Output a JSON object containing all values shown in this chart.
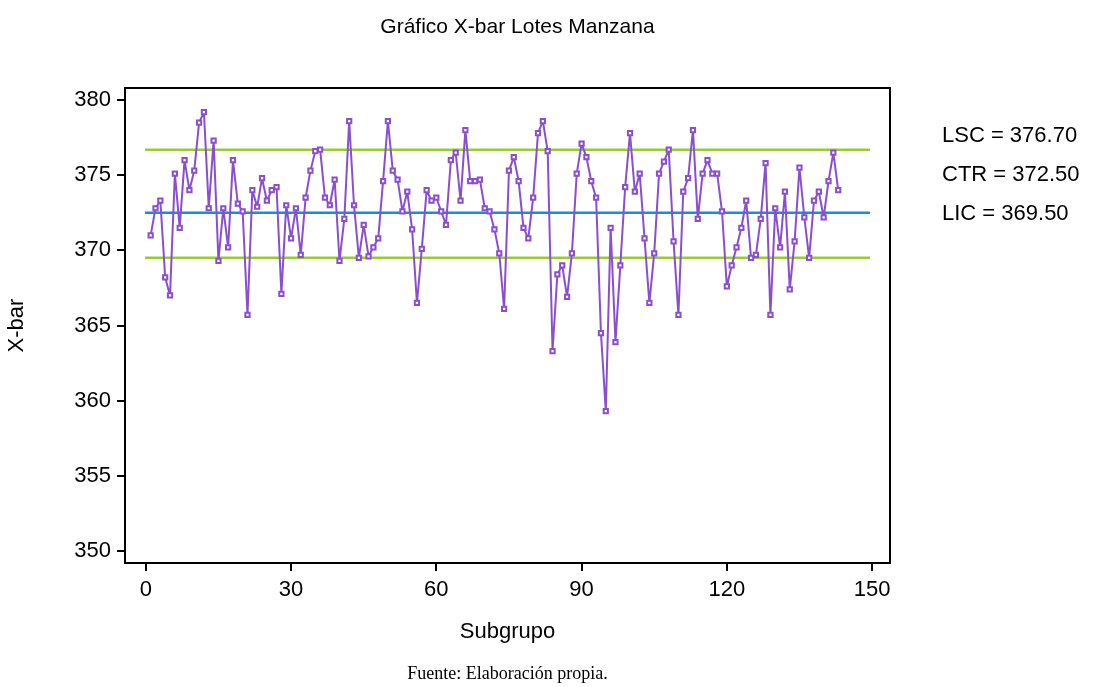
{
  "chart_data": {
    "type": "line",
    "title": "Gráfico X-bar Lotes Manzana",
    "xlabel": "Subgrupo",
    "ylabel": "X-bar",
    "annotations": [
      "LSC = 376.70",
      "CTR = 372.50",
      "LIC = 369.50",
      "Fuente: Elaboración propia."
    ],
    "x": [
      1,
      2,
      3,
      4,
      5,
      6,
      7,
      8,
      9,
      10,
      11,
      12,
      13,
      14,
      15,
      16,
      17,
      18,
      19,
      20,
      21,
      22,
      23,
      24,
      25,
      26,
      27,
      28,
      29,
      30,
      31,
      32,
      33,
      34,
      35,
      36,
      37,
      38,
      39,
      40,
      41,
      42,
      43,
      44,
      45,
      46,
      47,
      48,
      49,
      50,
      51,
      52,
      53,
      54,
      55,
      56,
      57,
      58,
      59,
      60,
      61,
      62,
      63,
      64,
      65,
      66,
      67,
      68,
      69,
      70,
      71,
      72,
      73,
      74,
      75,
      76,
      77,
      78,
      79,
      80,
      81,
      82,
      83,
      84,
      85,
      86,
      87,
      88,
      89,
      90,
      91,
      92,
      93,
      94,
      95,
      96,
      97,
      98,
      99,
      100,
      101,
      102,
      103,
      104,
      105,
      106,
      107,
      108,
      109,
      110,
      111,
      112,
      113,
      114,
      115,
      116,
      117,
      118,
      119,
      120,
      121,
      122,
      123,
      124,
      125,
      126,
      127,
      128,
      129,
      130,
      131,
      132,
      133,
      134,
      135,
      136,
      137,
      138,
      139,
      140,
      141,
      142,
      143
    ],
    "series": [
      {
        "color": "#8a4fcf",
        "values": [
          371.0,
          372.8,
          373.3,
          368.2,
          367.0,
          375.1,
          371.5,
          376.0,
          374.0,
          375.3,
          378.5,
          379.2,
          372.8,
          377.3,
          369.3,
          372.8,
          370.2,
          376.0,
          373.1,
          372.6,
          365.7,
          374.0,
          372.9,
          374.8,
          373.3,
          374.0,
          374.2,
          367.1,
          373.0,
          370.8,
          372.8,
          369.7,
          373.5,
          375.3,
          376.6,
          376.7,
          373.5,
          373.0,
          374.7,
          369.3,
          372.1,
          378.6,
          373.0,
          369.5,
          371.7,
          369.6,
          370.2,
          370.8,
          374.6,
          378.6,
          375.3,
          374.7,
          372.6,
          373.9,
          371.4,
          366.5,
          370.1,
          374.0,
          373.3,
          373.5,
          372.6,
          371.7,
          376.0,
          376.5,
          373.3,
          378.0,
          374.6,
          374.6,
          374.7,
          372.8,
          372.6,
          371.4,
          369.8,
          366.1,
          375.3,
          376.2,
          374.6,
          371.5,
          370.8,
          373.5,
          377.8,
          378.6,
          376.6,
          363.3,
          368.4,
          369.0,
          366.9,
          369.8,
          375.1,
          377.1,
          376.2,
          374.6,
          373.5,
          364.5,
          359.3,
          371.5,
          363.9,
          369.0,
          374.2,
          377.8,
          373.9,
          375.1,
          370.8,
          366.5,
          369.8,
          375.1,
          375.9,
          376.7,
          370.6,
          365.7,
          373.9,
          374.8,
          378.0,
          372.1,
          375.1,
          376.0,
          375.1,
          375.1,
          372.6,
          367.6,
          369.0,
          370.2,
          371.5,
          373.3,
          369.5,
          369.7,
          372.1,
          375.8,
          365.7,
          372.8,
          370.2,
          373.9,
          367.4,
          370.6,
          375.5,
          372.2,
          369.5,
          373.3,
          373.9,
          372.2,
          374.6,
          376.5,
          374.0
        ]
      }
    ],
    "marker": "square",
    "xlim": [
      -4.3,
      153.7
    ],
    "xticks": [
      0,
      30,
      60,
      90,
      120,
      150
    ],
    "ylim": [
      349.2,
      380.8
    ],
    "yticks": [
      350,
      355,
      360,
      365,
      370,
      375,
      380
    ],
    "ref_lines": [
      {
        "axis": "y",
        "value": 376.7,
        "color": "#99cc33"
      },
      {
        "axis": "y",
        "value": 372.5,
        "color": "#1e88e5"
      },
      {
        "axis": "y",
        "value": 369.5,
        "color": "#99cc33"
      }
    ],
    "grid": false,
    "legend": false
  }
}
